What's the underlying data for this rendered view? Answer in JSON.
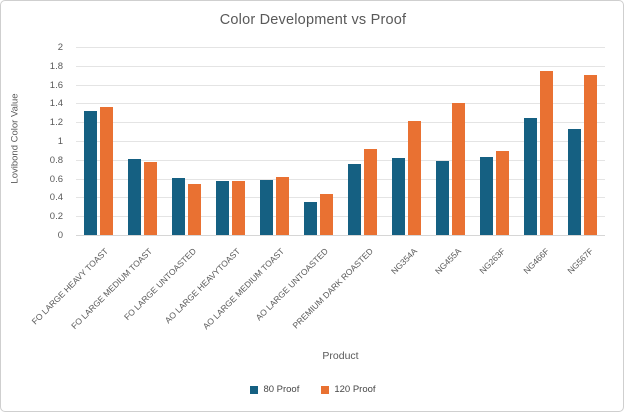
{
  "chart_data": {
    "type": "bar",
    "title": "Color Development vs Proof",
    "xlabel": "Product",
    "ylabel": "Lovibond Color Value",
    "ylim": [
      0,
      2
    ],
    "ytick_step": 0.2,
    "ytick_labels": [
      "0",
      "0.2",
      "0.4",
      "0.6",
      "0.8",
      "1",
      "1.2",
      "1.4",
      "1.6",
      "1.8",
      "2"
    ],
    "grid": true,
    "legend_position": "bottom",
    "categories": [
      "FO LARGE HEAVY TOAST",
      "FO LARGE MEDIUM TOAST",
      "FO LARGE UNTOASTED",
      "AO LARGE HEAVYTOAST",
      "AO LARGE MEDIUM TOAST",
      "AO LARGE UNTOASTED",
      "PREMIUM DARK ROASTED",
      "NG354A",
      "NG455A",
      "NG263F",
      "NG466F",
      "NG567F"
    ],
    "series": [
      {
        "name": "80 Proof",
        "color": "#156082",
        "values": [
          1.32,
          0.81,
          0.61,
          0.57,
          0.59,
          0.35,
          0.76,
          0.82,
          0.79,
          0.83,
          1.25,
          1.13
        ]
      },
      {
        "name": "120 Proof",
        "color": "#E97132",
        "values": [
          1.36,
          0.78,
          0.54,
          0.57,
          0.62,
          0.44,
          0.92,
          1.21,
          1.4,
          0.89,
          1.75,
          1.7
        ]
      }
    ]
  },
  "colors": {
    "title_text": "#595959",
    "axis_text": "#595959",
    "gridline": "#e4e4e4",
    "frame_border": "#cfcfcf"
  }
}
